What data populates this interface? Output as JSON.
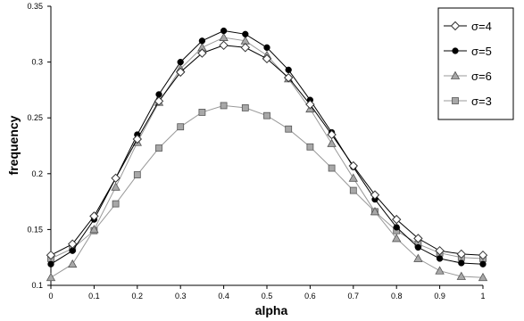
{
  "chart_data": {
    "type": "line",
    "title": "",
    "xlabel": "alpha",
    "ylabel": "frequency",
    "xlim": [
      0,
      1
    ],
    "ylim": [
      0.1,
      0.35
    ],
    "x_ticks": [
      "0",
      "0.1",
      "0.2",
      "0.3",
      "0.4",
      "0.5",
      "0.6",
      "0.7",
      "0.8",
      "0.9",
      "1"
    ],
    "y_ticks": [
      "0.1",
      "0.15",
      "0.2",
      "0.25",
      "0.3",
      "0.35"
    ],
    "grid": false,
    "legend_position": "top-right",
    "x": [
      0,
      0.05,
      0.1,
      0.15,
      0.2,
      0.25,
      0.3,
      0.35,
      0.4,
      0.45,
      0.5,
      0.55,
      0.6,
      0.65,
      0.7,
      0.75,
      0.8,
      0.85,
      0.9,
      0.95,
      1
    ],
    "series": [
      {
        "name": "σ=4",
        "marker": "diamond-open",
        "color": "#000000",
        "values": [
          0.127,
          0.137,
          0.162,
          0.196,
          0.231,
          0.265,
          0.291,
          0.308,
          0.315,
          0.313,
          0.303,
          0.286,
          0.262,
          0.235,
          0.207,
          0.181,
          0.159,
          0.142,
          0.131,
          0.128,
          0.127
        ]
      },
      {
        "name": "σ=5",
        "marker": "circle-filled",
        "color": "#000000",
        "values": [
          0.119,
          0.131,
          0.159,
          0.196,
          0.235,
          0.271,
          0.3,
          0.319,
          0.328,
          0.325,
          0.313,
          0.293,
          0.266,
          0.237,
          0.206,
          0.177,
          0.152,
          0.134,
          0.124,
          0.12,
          0.119
        ]
      },
      {
        "name": "σ=6",
        "marker": "triangle-filled",
        "color": "#999999",
        "values": [
          0.107,
          0.119,
          0.15,
          0.188,
          0.228,
          0.264,
          0.294,
          0.313,
          0.322,
          0.319,
          0.306,
          0.285,
          0.258,
          0.227,
          0.196,
          0.166,
          0.142,
          0.124,
          0.113,
          0.108,
          0.107
        ]
      },
      {
        "name": "σ=3",
        "marker": "square-filled",
        "color": "#999999",
        "values": [
          0.124,
          0.133,
          0.149,
          0.173,
          0.199,
          0.223,
          0.242,
          0.255,
          0.261,
          0.259,
          0.252,
          0.24,
          0.224,
          0.205,
          0.185,
          0.166,
          0.149,
          0.137,
          0.129,
          0.125,
          0.124
        ]
      }
    ]
  }
}
